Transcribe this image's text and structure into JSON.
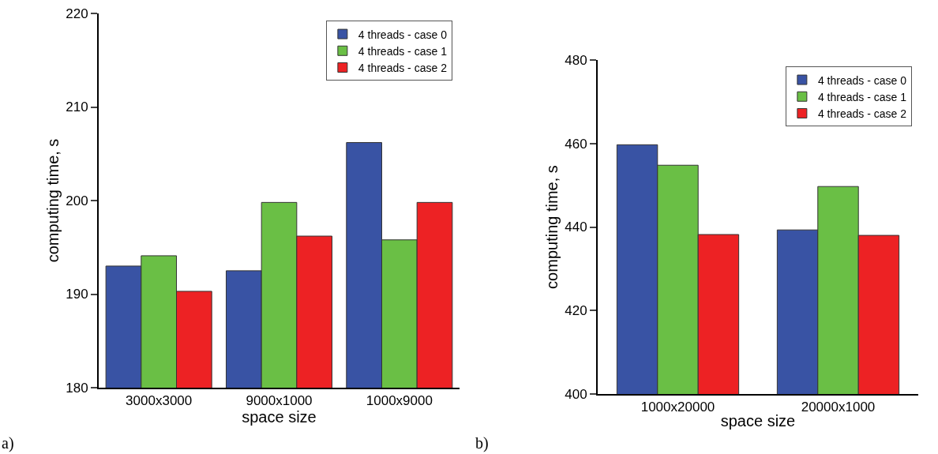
{
  "chart_data": [
    {
      "type": "bar",
      "categories": [
        "3000x3000",
        "9000x1000",
        "1000x9000"
      ],
      "xlabel": "space size",
      "ylabel": "computing time, s",
      "ylim": [
        180,
        220
      ],
      "yticks": [
        180,
        190,
        200,
        210,
        220
      ],
      "grid": false,
      "legend": "top right",
      "annotations": [
        "a)"
      ],
      "series": [
        {
          "name": "4 threads - case 0",
          "color": "#3953a4",
          "values": [
            193.0,
            192.5,
            206.2
          ]
        },
        {
          "name": "4 threads - case 1",
          "color": "#6abf45",
          "values": [
            194.1,
            199.8,
            195.8
          ]
        },
        {
          "name": "4 threads - case 2",
          "color": "#ed2224",
          "values": [
            190.3,
            196.2,
            199.8
          ]
        }
      ]
    },
    {
      "type": "bar",
      "categories": [
        "1000x20000",
        "20000x1000"
      ],
      "xlabel": "space size",
      "ylabel": "computing time, s",
      "ylim": [
        400,
        480
      ],
      "yticks": [
        400,
        420,
        440,
        460,
        480
      ],
      "grid": false,
      "legend": "top right",
      "annotations": [
        "b)"
      ],
      "series": [
        {
          "name": "4 threads - case 0",
          "color": "#3953a4",
          "values": [
            459.7,
            439.3
          ]
        },
        {
          "name": "4 threads - case 1",
          "color": "#6abf45",
          "values": [
            454.8,
            449.7
          ]
        },
        {
          "name": "4 threads - case 2",
          "color": "#ed2224",
          "values": [
            438.2,
            438.0
          ]
        }
      ]
    }
  ]
}
